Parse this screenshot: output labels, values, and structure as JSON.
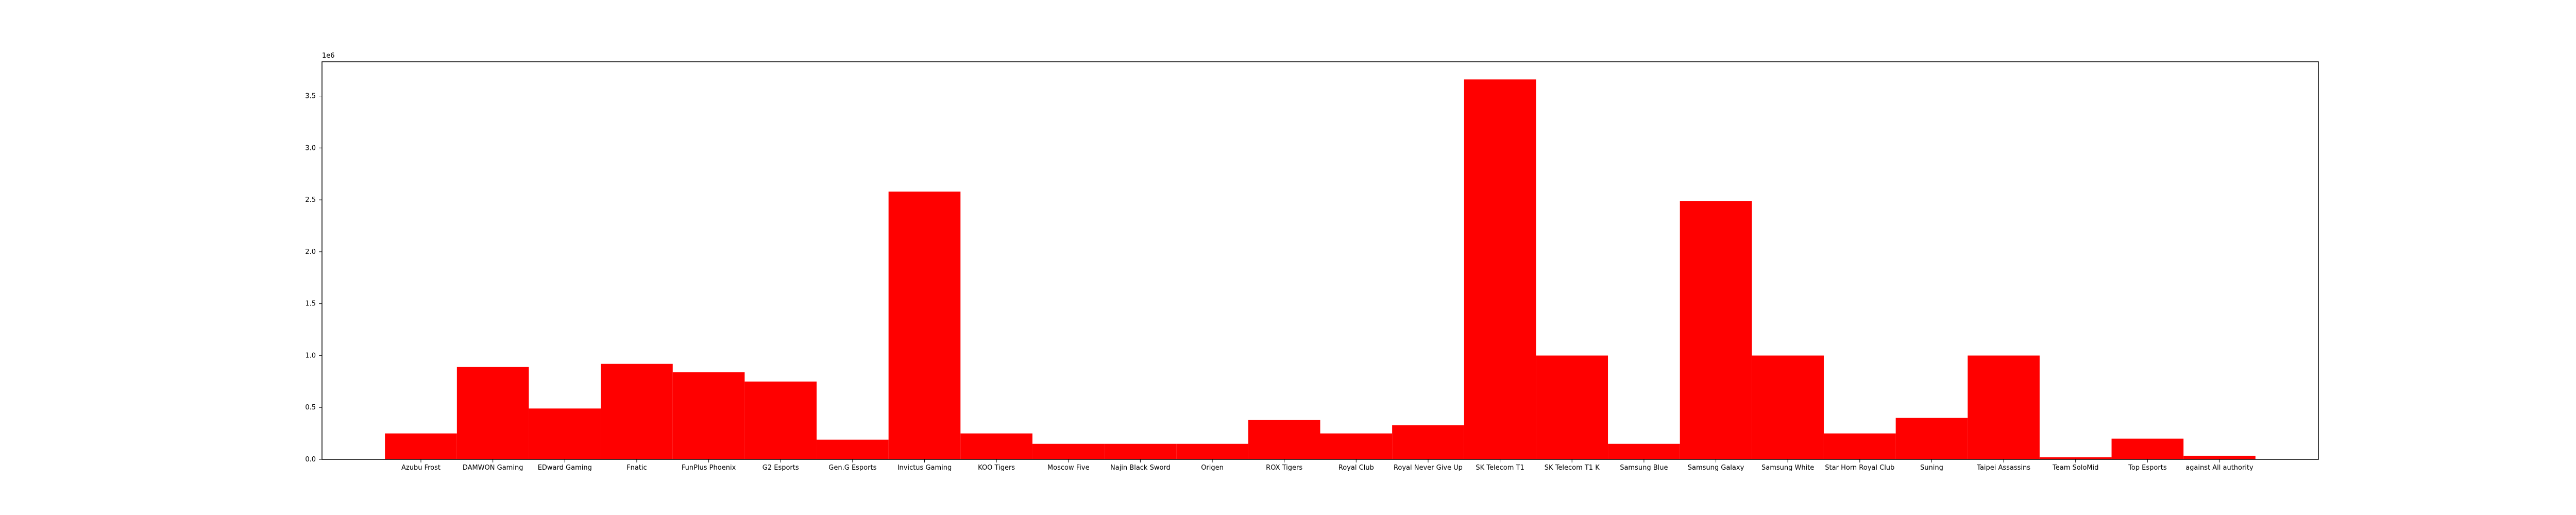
{
  "chart_data": {
    "type": "bar",
    "title": "",
    "xlabel": "",
    "ylabel": "",
    "offset_label": "1e6",
    "ylim": [
      0,
      3830000
    ],
    "yticks": [
      0,
      500000,
      1000000,
      1500000,
      2000000,
      2500000,
      3000000,
      3500000
    ],
    "ytick_labels": [
      "0.0",
      "0.5",
      "1.0",
      "1.5",
      "2.0",
      "2.5",
      "3.0",
      "3.5"
    ],
    "bar_color": "#ff0000",
    "grid": false,
    "categories": [
      "Azubu Frost",
      "DAMWON Gaming",
      "EDward Gaming",
      "Fnatic",
      "FunPlus Phoenix",
      "G2 Esports",
      "Gen.G Esports",
      "Invictus Gaming",
      "KOO Tigers",
      "Moscow Five",
      "Najin Black Sword",
      "Origen",
      "ROX Tigers",
      "Royal Club",
      "Royal Never Give Up",
      "SK Telecom T1",
      "SK Telecom T1 K",
      "Samsung Blue",
      "Samsung Galaxy",
      "Samsung White",
      "Star Horn Royal Club",
      "Suning",
      "Taipei Assassins",
      "Team SoloMid",
      "Top Esports",
      "against All authority"
    ],
    "values": [
      250000,
      890000,
      490000,
      920000,
      840000,
      750000,
      190000,
      2580000,
      250000,
      150000,
      150000,
      150000,
      380000,
      250000,
      330000,
      3660000,
      1000000,
      150000,
      2490000,
      1000000,
      250000,
      400000,
      1000000,
      20000,
      200000,
      35000
    ]
  }
}
